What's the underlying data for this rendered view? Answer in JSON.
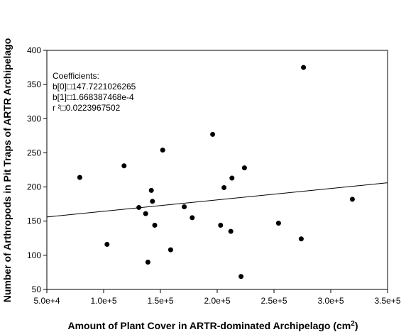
{
  "chart_data": {
    "type": "scatter",
    "title": "",
    "xlabel": "Amount of Plant Cover in ARTR-dominated Archipelago (cm",
    "xlabel_sup": "2",
    "xlabel_end": ")",
    "ylabel": "Number of Arthropods in Pit Traps of ARTR Archipelago",
    "xlim": [
      50000,
      350000
    ],
    "ylim": [
      50,
      400
    ],
    "x_ticks": [
      50000,
      100000,
      150000,
      200000,
      250000,
      300000,
      350000
    ],
    "x_tick_labels": [
      "5.0e+4",
      "1.0e+5",
      "1.5e+5",
      "2.0e+5",
      "2.5e+5",
      "3.0e+5",
      "3.5e+5"
    ],
    "y_ticks": [
      50,
      100,
      150,
      200,
      250,
      300,
      350,
      400
    ],
    "y_tick_labels": [
      "50",
      "100",
      "150",
      "200",
      "250",
      "300",
      "350",
      "400"
    ],
    "grid": false,
    "marker_color": "#000000",
    "points": [
      {
        "x": 79000,
        "y": 214
      },
      {
        "x": 103000,
        "y": 116
      },
      {
        "x": 118000,
        "y": 231
      },
      {
        "x": 131000,
        "y": 170
      },
      {
        "x": 137000,
        "y": 161
      },
      {
        "x": 139000,
        "y": 90
      },
      {
        "x": 142000,
        "y": 195
      },
      {
        "x": 143000,
        "y": 179
      },
      {
        "x": 145000,
        "y": 144
      },
      {
        "x": 152000,
        "y": 254
      },
      {
        "x": 159000,
        "y": 108
      },
      {
        "x": 171000,
        "y": 171
      },
      {
        "x": 178000,
        "y": 155
      },
      {
        "x": 196000,
        "y": 277
      },
      {
        "x": 203000,
        "y": 144
      },
      {
        "x": 206000,
        "y": 199
      },
      {
        "x": 212000,
        "y": 135
      },
      {
        "x": 213000,
        "y": 213
      },
      {
        "x": 221000,
        "y": 69
      },
      {
        "x": 224000,
        "y": 228
      },
      {
        "x": 254000,
        "y": 147
      },
      {
        "x": 274000,
        "y": 124
      },
      {
        "x": 276000,
        "y": 375
      },
      {
        "x": 319000,
        "y": 182
      }
    ],
    "regression": {
      "intercept": 147.7221026265,
      "slope": 0.0001668387468
    },
    "annotation": {
      "lines": [
        "Coefficients:",
        "b[0]□147.7221026265",
        "b[1]□1.668387468e-4",
        "r ²□0.0223967502"
      ]
    }
  }
}
